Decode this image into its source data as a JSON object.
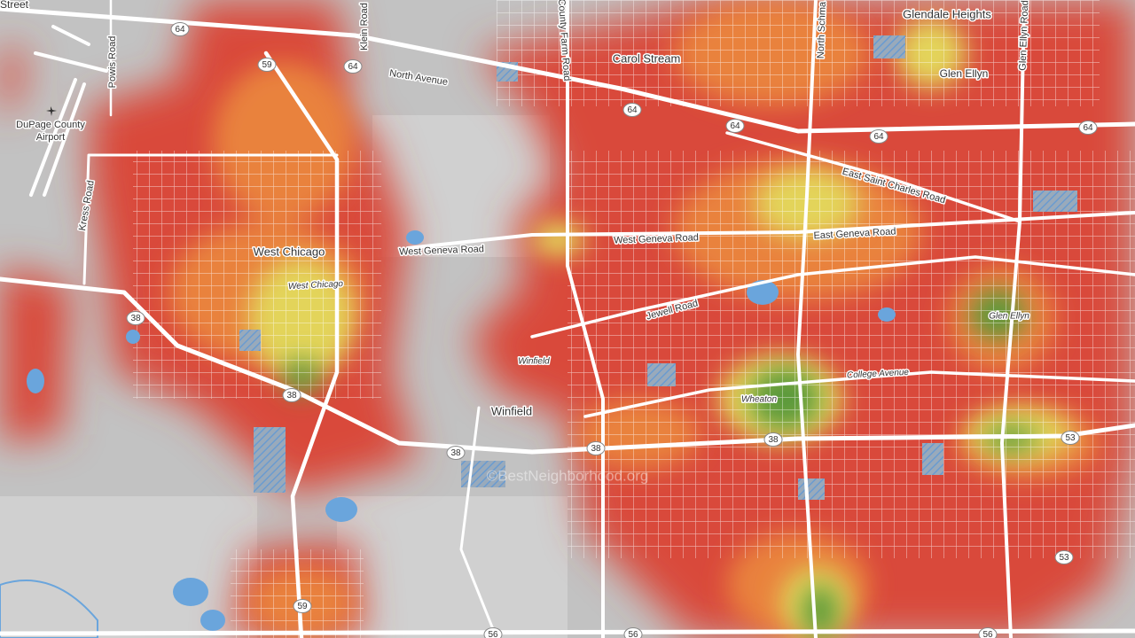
{
  "labels": [
    "Street",
    "Glendale Heights",
    "Klein Road",
    "Powis Road",
    "Carol Stream",
    "County Farm Road",
    "North Schma",
    "Glen Ellyn Road",
    "North Avenue",
    "Glen Ellyn",
    "DuPage County",
    "Airport",
    "Kress Road",
    "East Saint Charles Road",
    "West Geneva Road",
    "East Geneva Road",
    "West Chicago",
    "West Chicago",
    "West Geneva Road",
    "Jewell Road",
    "Glen Ellyn",
    "College Avenue",
    "Wheaton",
    "Winfield",
    "Winfield"
  ],
  "shields": [
    "64",
    "64",
    "64",
    "64",
    "64",
    "64",
    "59",
    "59",
    "38",
    "38",
    "38",
    "38",
    "38",
    "53",
    "53",
    "56",
    "56",
    "56"
  ],
  "watermark": "©BestNeighborhood.org"
}
